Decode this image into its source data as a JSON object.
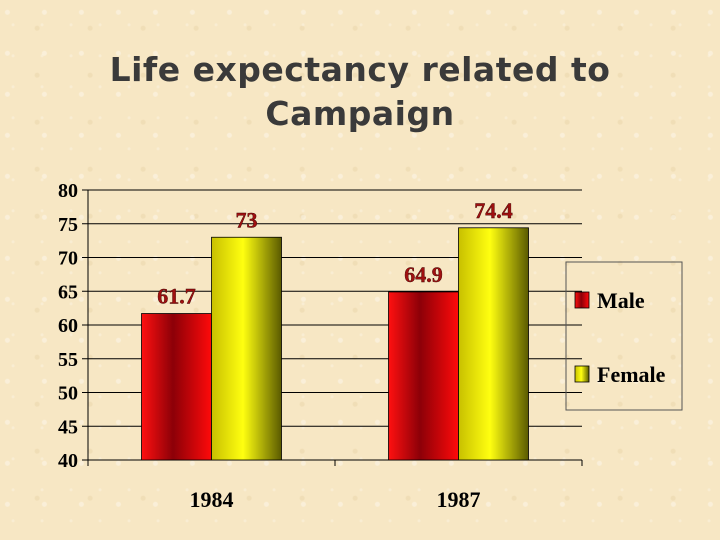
{
  "slide": {
    "title_line1": "Life expectancy related to",
    "title_line2": "Campaign"
  },
  "chart_data": {
    "type": "bar",
    "categories": [
      "1984",
      "1987"
    ],
    "series": [
      {
        "name": "Male",
        "values": [
          61.7,
          64.9
        ],
        "color": "#e8000a"
      },
      {
        "name": "Female",
        "values": [
          73,
          74.4
        ],
        "color": "#ffff00"
      }
    ],
    "data_labels": [
      [
        "61.7",
        "64.9"
      ],
      [
        "73",
        "74.4"
      ]
    ],
    "ylim": [
      40,
      80
    ],
    "yticks": [
      40,
      45,
      50,
      55,
      60,
      65,
      70,
      75,
      80
    ],
    "grid": true,
    "legend": "right",
    "label_color": "#a01010"
  }
}
